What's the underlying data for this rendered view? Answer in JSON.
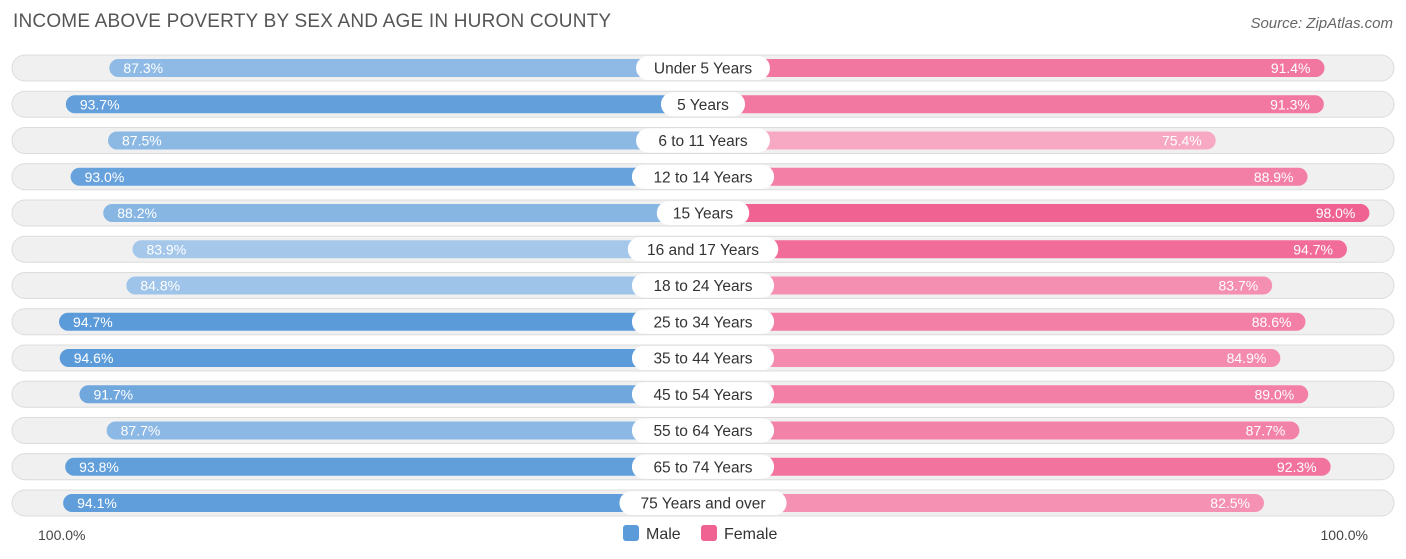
{
  "chart_data": {
    "type": "bar",
    "orientation": "horizontal-diverging",
    "title": "INCOME ABOVE POVERTY BY SEX AND AGE IN HURON COUNTY",
    "source": "Source: ZipAtlas.com",
    "categories": [
      "Under 5 Years",
      "5 Years",
      "6 to 11 Years",
      "12 to 14 Years",
      "15 Years",
      "16 and 17 Years",
      "18 to 24 Years",
      "25 to 34 Years",
      "35 to 44 Years",
      "45 to 54 Years",
      "55 to 64 Years",
      "65 to 74 Years",
      "75 Years and over"
    ],
    "series": [
      {
        "name": "Male",
        "color": "#5b9bd9",
        "values": [
          87.3,
          93.7,
          87.5,
          93.0,
          88.2,
          83.9,
          84.8,
          94.7,
          94.6,
          91.7,
          87.7,
          93.8,
          94.1
        ],
        "labels": [
          "87.3%",
          "93.7%",
          "87.5%",
          "93.0%",
          "88.2%",
          "83.9%",
          "84.8%",
          "94.7%",
          "94.6%",
          "91.7%",
          "87.7%",
          "93.8%",
          "94.1%"
        ]
      },
      {
        "name": "Female",
        "color": "#f06292",
        "values": [
          91.4,
          91.3,
          75.4,
          88.9,
          98.0,
          94.7,
          83.7,
          88.6,
          84.9,
          89.0,
          87.7,
          92.3,
          82.5
        ],
        "labels": [
          "91.4%",
          "91.3%",
          "75.4%",
          "88.9%",
          "98.0%",
          "94.7%",
          "83.7%",
          "88.6%",
          "84.9%",
          "89.0%",
          "87.7%",
          "92.3%",
          "82.5%"
        ]
      }
    ],
    "xlim": [
      0,
      100
    ],
    "axis_left_label": "100.0%",
    "axis_right_label": "100.0%",
    "legend": [
      "Male",
      "Female"
    ]
  }
}
